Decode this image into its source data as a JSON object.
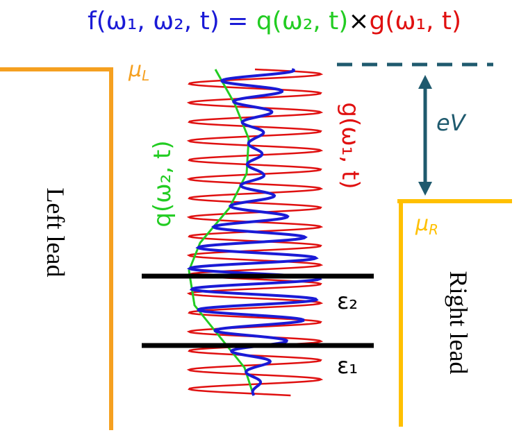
{
  "equation": {
    "f_part": "f(ω₁, ω₂, t) = ",
    "q_part": "q(ω₂, t)",
    "times": "×",
    "g_part": "g(ω₁, t)"
  },
  "labels": {
    "mu_L": {
      "symbol": "μ",
      "sub": "L"
    },
    "mu_R": {
      "symbol": "μ",
      "sub": "R"
    },
    "bias": "eV",
    "left_lead": "Left lead",
    "right_lead": "Right lead",
    "q_curve": "q(ω₂, t)",
    "g_curve": "g(ω₁, t)",
    "level_2": "ε₂",
    "level_1": "ε₁"
  }
}
